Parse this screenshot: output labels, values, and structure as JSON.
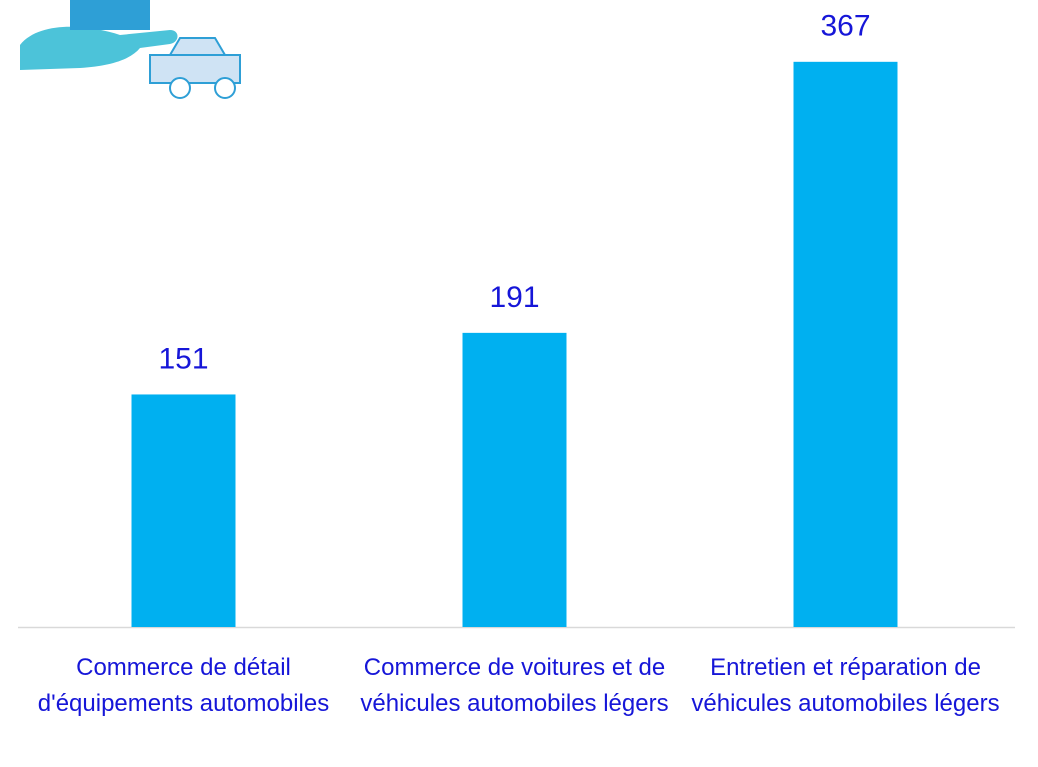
{
  "chart_data": {
    "type": "bar",
    "categories": [
      "Commerce de détail d'équipements automobiles",
      "Commerce de voitures et de véhicules automobiles légers",
      "Entretien et réparation de véhicules automobiles légers"
    ],
    "values": [
      151,
      191,
      367
    ],
    "color": "#00b0f0",
    "label_color": "#1616d8",
    "ylim": [
      0,
      400
    ]
  }
}
